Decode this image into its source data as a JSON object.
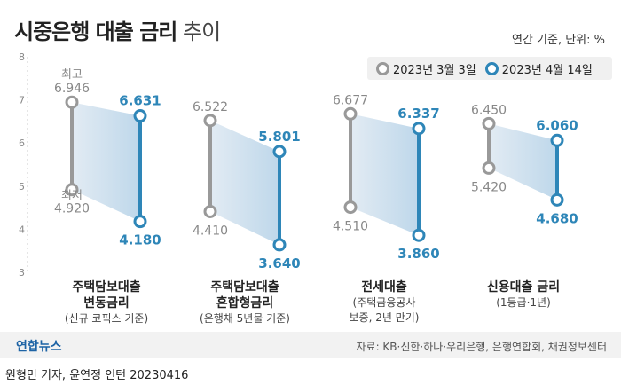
{
  "header": {
    "title_main": "시중은행 대출 금리",
    "title_sub": "추이",
    "unit_note": "연간 기준, 단위: %"
  },
  "legend": {
    "items": [
      {
        "label": "2023년 3월 3일",
        "color": "#999999"
      },
      {
        "label": "2023년 4월 14일",
        "color": "#2e86b8"
      }
    ]
  },
  "chart_data": {
    "type": "range-dot",
    "title": "시중은행 대출 금리 추이",
    "ylabel": "",
    "ylim": [
      3,
      8
    ],
    "yticks": [
      "3",
      "4",
      "5",
      "6",
      "7",
      "8"
    ],
    "high_label": "최고",
    "low_label": "최저",
    "categories": [
      {
        "name": "주택담보대출\n변동금리",
        "note": "(신규 코픽스 기준)"
      },
      {
        "name": "주택담보대출\n혼합형금리",
        "note": "(은행채 5년물 기준)"
      },
      {
        "name": "전세대출",
        "note": "(주택금융공사\n보증, 2년 만기)"
      },
      {
        "name": "신용대출 금리",
        "note": "(1등급·1년)"
      }
    ],
    "series": [
      {
        "name": "2023년 3월 3일",
        "color": "#999999",
        "high": [
          6.946,
          6.522,
          6.677,
          6.45
        ],
        "low": [
          4.92,
          4.41,
          4.51,
          5.42
        ],
        "high_labels": [
          "6.946",
          "6.522",
          "6.677",
          "6.450"
        ],
        "low_labels": [
          "4.920",
          "4.410",
          "4.510",
          "5.420"
        ]
      },
      {
        "name": "2023년 4월 14일",
        "color": "#2e86b8",
        "high": [
          6.631,
          5.801,
          6.337,
          6.06
        ],
        "low": [
          4.18,
          3.64,
          3.86,
          4.68
        ],
        "high_labels": [
          "6.631",
          "5.801",
          "6.337",
          "6.060"
        ],
        "low_labels": [
          "4.180",
          "3.640",
          "3.860",
          "4.680"
        ]
      }
    ]
  },
  "footer": {
    "logo": "연합뉴스",
    "source": "자료: KB·신한·하나·우리은행, 은행연합회, 채권정보센터",
    "byline": "원형민 기자, 윤연정 인턴  20230416"
  }
}
